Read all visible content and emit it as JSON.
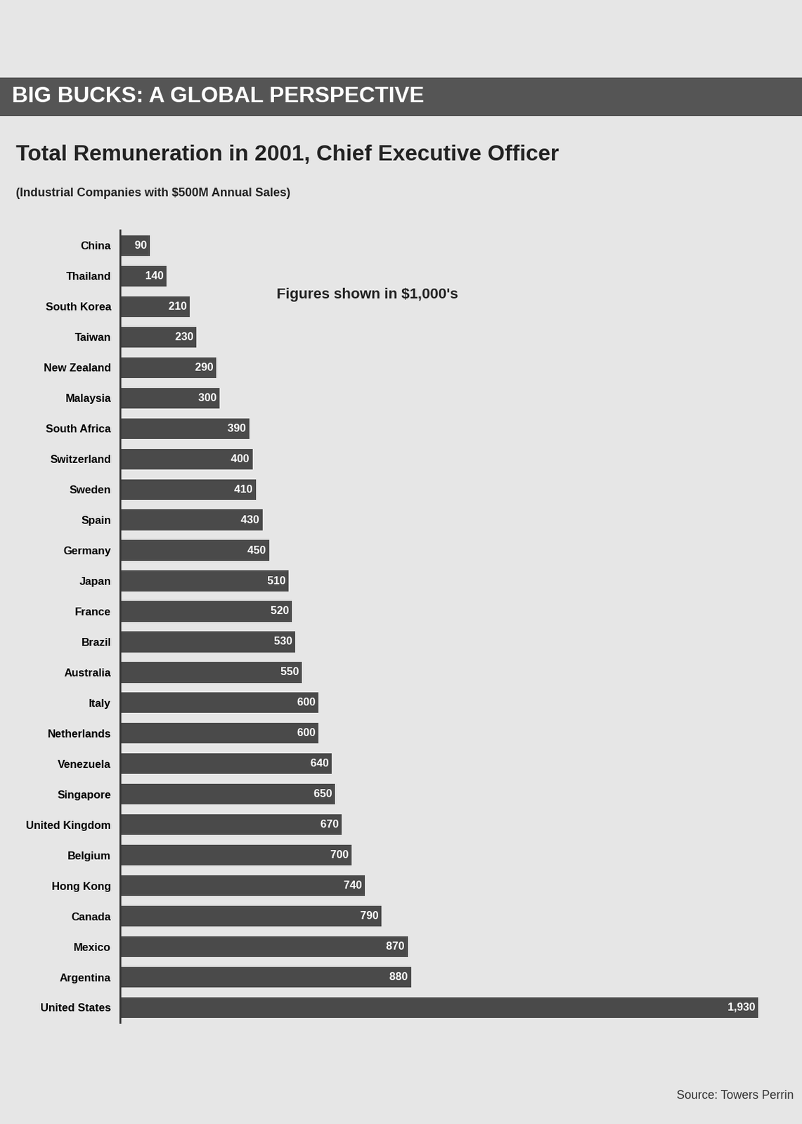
{
  "chart_data": {
    "type": "bar",
    "orientation": "horizontal",
    "header": "BIG BUCKS: A GLOBAL PERSPECTIVE",
    "title": "Total Remuneration in 2001, Chief Executive Officer",
    "subtitle": "(Industrial Companies with $500M Annual Sales)",
    "annotation": "Figures shown in $1,000's",
    "source": "Source: Towers Perrin",
    "categories": [
      "China",
      "Thailand",
      "South Korea",
      "Taiwan",
      "New Zealand",
      "Malaysia",
      "South Africa",
      "Switzerland",
      "Sweden",
      "Spain",
      "Germany",
      "Japan",
      "France",
      "Brazil",
      "Australia",
      "Italy",
      "Netherlands",
      "Venezuela",
      "Singapore",
      "United Kingdom",
      "Belgium",
      "Hong Kong",
      "Canada",
      "Mexico",
      "Argentina",
      "United States"
    ],
    "values": [
      90,
      140,
      210,
      230,
      290,
      300,
      390,
      400,
      410,
      430,
      450,
      510,
      520,
      530,
      550,
      600,
      600,
      640,
      650,
      670,
      700,
      740,
      790,
      870,
      880,
      1930
    ],
    "value_labels": [
      "90",
      "140",
      "210",
      "230",
      "290",
      "300",
      "390",
      "400",
      "410",
      "430",
      "450",
      "510",
      "520",
      "530",
      "550",
      "600",
      "600",
      "640",
      "650",
      "670",
      "700",
      "740",
      "790",
      "870",
      "880",
      "1,930"
    ],
    "data_labels": true,
    "tick_labels": "y",
    "grid": false,
    "color": "#4a4a4a"
  }
}
